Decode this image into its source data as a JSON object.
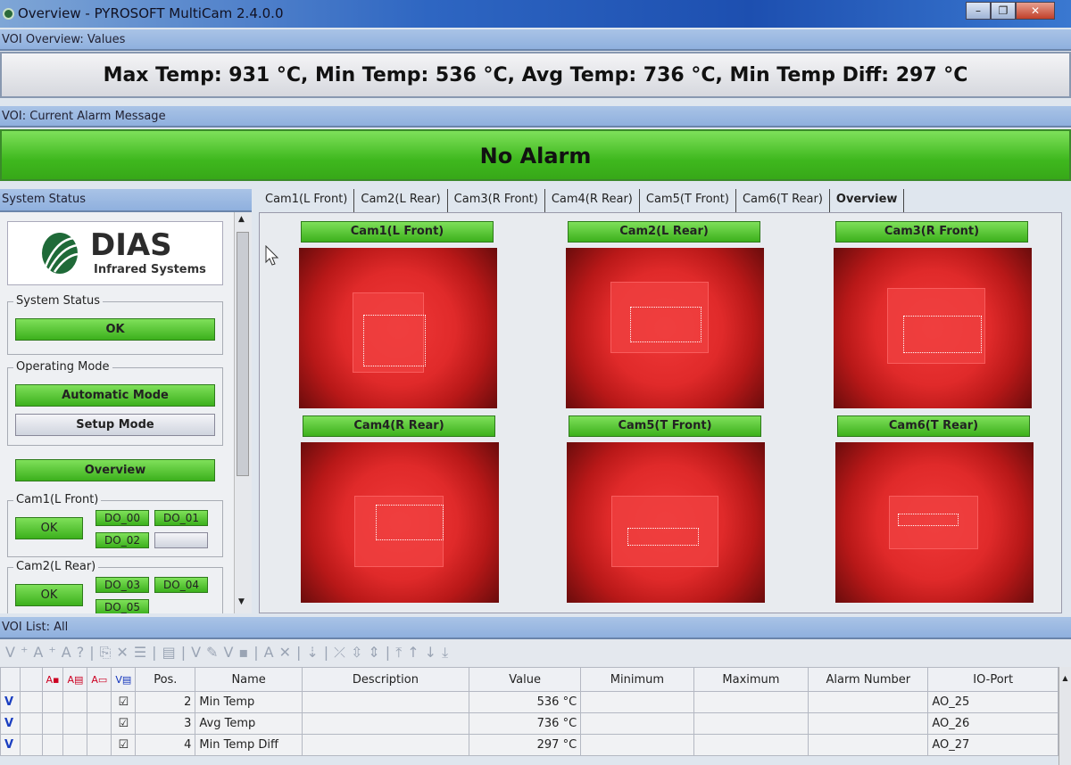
{
  "window": {
    "title": "Overview - PYROSOFT MultiCam 2.4.0.0"
  },
  "voi_overview": {
    "header": "VOI Overview: Values",
    "text": "Max Temp: 931 °C, Min Temp: 536 °C, Avg Temp: 736 °C, Min Temp Diff: 297 °C"
  },
  "alarm": {
    "header": "VOI: Current Alarm Message",
    "text": "No Alarm",
    "color": "#3fb81e"
  },
  "system": {
    "header": "System Status",
    "logo_name": "DIAS",
    "logo_sub": "Infrared Systems",
    "status_group": "System Status",
    "status": "OK",
    "mode_group": "Operating Mode",
    "auto_mode": "Automatic Mode",
    "setup_mode": "Setup Mode",
    "overview": "Overview",
    "cams": [
      {
        "label": "Cam1(L Front)",
        "status": "OK",
        "outputs": [
          "DO_00",
          "DO_01",
          "DO_02"
        ]
      },
      {
        "label": "Cam2(L Rear)",
        "status": "OK",
        "outputs": [
          "DO_03",
          "DO_04",
          "DO_05"
        ]
      }
    ]
  },
  "tabs": [
    "Cam1(L Front)",
    "Cam2(L Rear)",
    "Cam3(R Front)",
    "Cam4(R Rear)",
    "Cam5(T Front)",
    "Cam6(T Rear)",
    "Overview"
  ],
  "cameras": [
    "Cam1(L Front)",
    "Cam2(L Rear)",
    "Cam3(R Front)",
    "Cam4(R Rear)",
    "Cam5(T Front)",
    "Cam6(T Rear)"
  ],
  "voi_list": {
    "header": "VOI List: All",
    "columns": [
      "Pos.",
      "Name",
      "Description",
      "Value",
      "Minimum",
      "Maximum",
      "Alarm Number",
      "IO-Port"
    ],
    "rows": [
      {
        "flag": "V",
        "pos": "2",
        "name": "Min Temp",
        "value": "536 °C",
        "io": "AO_25"
      },
      {
        "flag": "V",
        "pos": "3",
        "name": "Avg Temp",
        "value": "736 °C",
        "io": "AO_26"
      },
      {
        "flag": "V",
        "pos": "4",
        "name": "Min Temp Diff",
        "value": "297 °C",
        "io": "AO_27"
      }
    ]
  }
}
